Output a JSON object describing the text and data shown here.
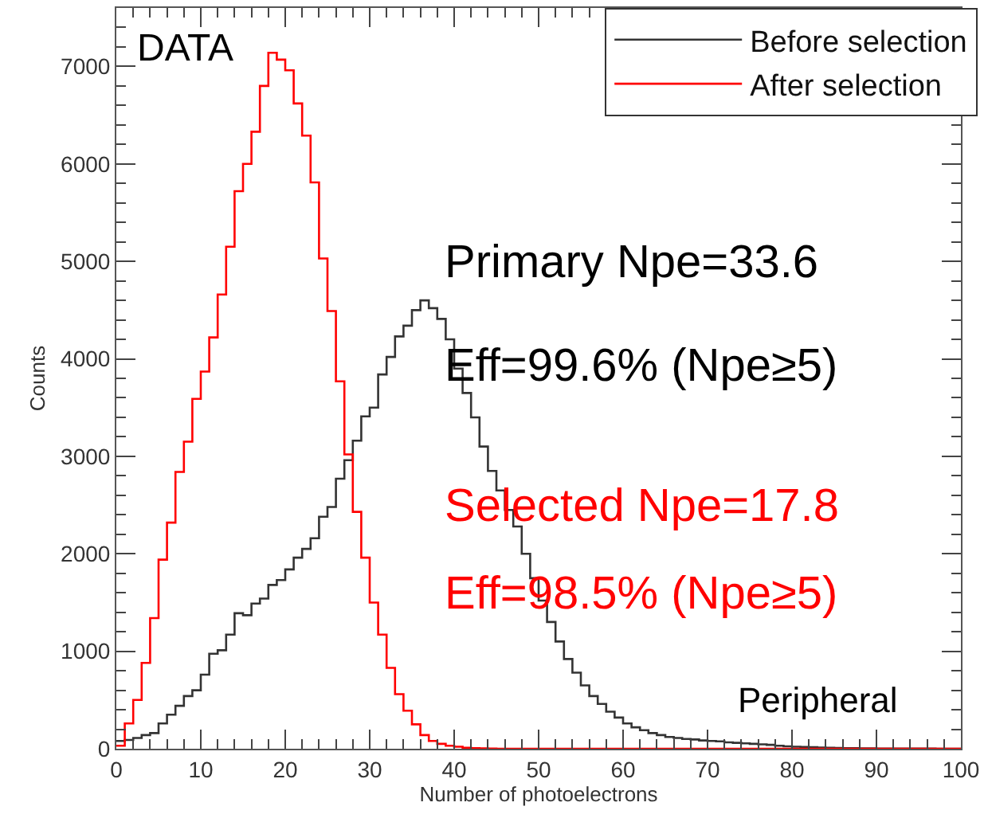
{
  "chart_data": {
    "type": "histogram",
    "xlabel": "Number of photoelectrons",
    "ylabel": "Counts",
    "bins": [
      0,
      1,
      2,
      3,
      4,
      5,
      6,
      7,
      8,
      9,
      10,
      11,
      12,
      13,
      14,
      15,
      16,
      17,
      18,
      19,
      20,
      21,
      22,
      23,
      24,
      25,
      26,
      27,
      28,
      29,
      30,
      31,
      32,
      33,
      34,
      35,
      36,
      37,
      38,
      39,
      40,
      41,
      42,
      43,
      44,
      45,
      46,
      47,
      48,
      49,
      50,
      51,
      52,
      53,
      54,
      55,
      56,
      57,
      58,
      59,
      60,
      61,
      62,
      63,
      64,
      65,
      66,
      67,
      68,
      69,
      70,
      71,
      72,
      73,
      74,
      75,
      76,
      77,
      78,
      79,
      80,
      81,
      82,
      83,
      84,
      85,
      86,
      87,
      88,
      89,
      90,
      91,
      92,
      93,
      94,
      95,
      96,
      97,
      98,
      99,
      100
    ],
    "series": [
      {
        "name": "Before selection",
        "color": "#333333",
        "values": [
          80,
          90,
          110,
          140,
          160,
          260,
          350,
          440,
          540,
          600,
          760,
          975,
          1010,
          1170,
          1390,
          1370,
          1490,
          1540,
          1680,
          1730,
          1840,
          1960,
          2050,
          2160,
          2380,
          2480,
          2770,
          2960,
          3160,
          3410,
          3500,
          3840,
          4020,
          4230,
          4340,
          4500,
          4600,
          4520,
          4410,
          4200,
          3900,
          3650,
          3400,
          3100,
          2850,
          2650,
          2450,
          2280,
          2000,
          1750,
          1520,
          1300,
          1100,
          920,
          780,
          650,
          540,
          460,
          380,
          320,
          260,
          220,
          190,
          160,
          140,
          120,
          110,
          100,
          95,
          85,
          80,
          75,
          65,
          60,
          55,
          50,
          45,
          40,
          30,
          25,
          20,
          18,
          15,
          12,
          10,
          8,
          6,
          5,
          4,
          3,
          2,
          2,
          1,
          1,
          1,
          1,
          1,
          0,
          0,
          0
        ]
      },
      {
        "name": "After selection",
        "color": "#ff0000",
        "values": [
          30,
          260,
          500,
          880,
          1340,
          1940,
          2320,
          2840,
          3150,
          3590,
          3870,
          4220,
          4660,
          5150,
          5720,
          6000,
          6330,
          6800,
          7140,
          7070,
          6960,
          6620,
          6290,
          5810,
          5030,
          4490,
          3770,
          3020,
          2430,
          1960,
          1500,
          1170,
          830,
          560,
          390,
          250,
          140,
          80,
          50,
          30,
          20,
          10,
          5,
          3,
          2,
          0,
          0,
          0,
          0,
          0,
          0,
          0,
          0,
          0,
          0,
          0,
          0,
          0,
          0,
          0,
          0,
          0,
          0,
          0,
          0,
          0,
          0,
          0,
          0,
          0,
          0,
          0,
          0,
          0,
          0,
          0,
          0,
          0,
          0,
          0,
          0,
          0,
          0,
          0,
          0,
          0,
          0,
          0,
          0,
          0,
          0,
          0,
          0,
          0,
          0,
          0,
          0,
          0,
          0,
          0
        ]
      }
    ],
    "xlim": [
      0,
      100
    ],
    "xticks": [
      0,
      10,
      20,
      30,
      40,
      50,
      60,
      70,
      80,
      90,
      100
    ],
    "ylim": [
      0,
      7600
    ],
    "yticks": [
      0,
      1000,
      2000,
      3000,
      4000,
      5000,
      6000,
      7000
    ],
    "grid": false,
    "legend": "top right",
    "annotations": [
      "DATA",
      "Primary Npe=33.6",
      "Eff=99.6% (Npe≥5)",
      "Selected Npe=17.8",
      "Eff=98.5% (Npe≥5)",
      "Peripheral"
    ]
  }
}
